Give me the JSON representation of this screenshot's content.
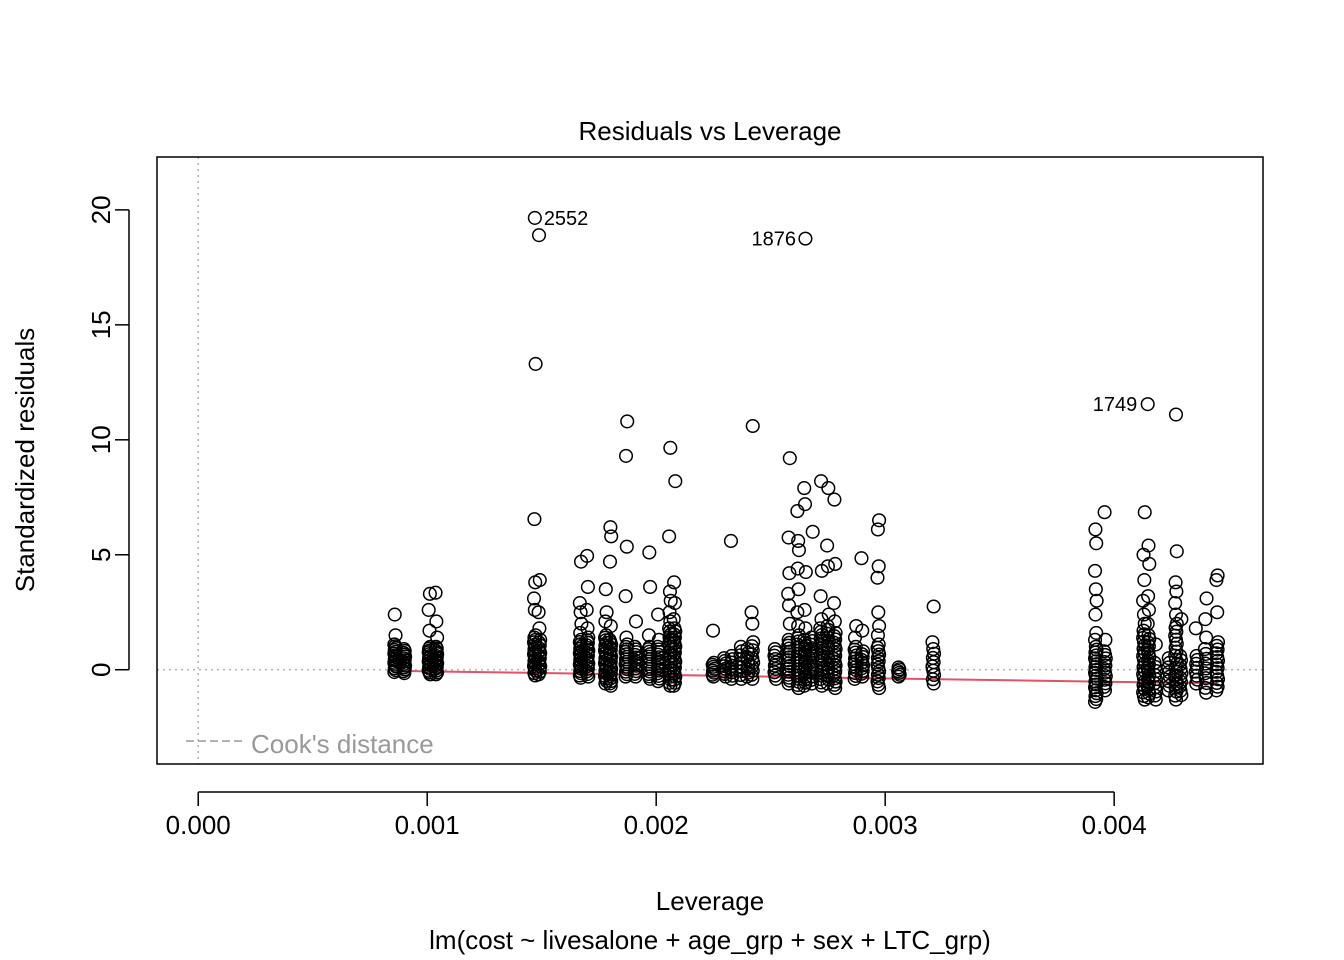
{
  "chart_data": {
    "type": "scatter",
    "title": "Residuals vs Leverage",
    "xlabel": "Leverage",
    "ylabel": "Standardized residuals",
    "subtitle": "lm(cost ~ livesalone + age_grp + sex + LTC_grp)",
    "xlim": [
      -0.00018,
      0.00465
    ],
    "ylim": [
      -4.1,
      22.3
    ],
    "x_ticks": [
      "0.000",
      "0.001",
      "0.002",
      "0.003",
      "0.004"
    ],
    "x_tick_values": [
      0,
      0.001,
      0.002,
      0.003,
      0.004
    ],
    "y_ticks": [
      "0",
      "5",
      "10",
      "15",
      "20"
    ],
    "y_tick_values": [
      0,
      5,
      10,
      15,
      20
    ],
    "reference_lines": {
      "x": 0,
      "y": 0,
      "style": "dotted",
      "color": "#b3b3b3"
    },
    "legend": {
      "label": "Cook's distance",
      "placement": "bottom-left",
      "line_style": "dashed",
      "color": "#999999"
    },
    "smoother_color": "#df536b",
    "smoother": [
      [
        0.00087,
        -0.05
      ],
      [
        0.001,
        -0.07
      ],
      [
        0.0015,
        -0.14
      ],
      [
        0.002,
        -0.22
      ],
      [
        0.0025,
        -0.3
      ],
      [
        0.003,
        -0.38
      ],
      [
        0.0035,
        -0.45
      ],
      [
        0.004,
        -0.53
      ],
      [
        0.00445,
        -0.58
      ]
    ],
    "labeled_points": [
      {
        "label": "2552",
        "x": 0.00147,
        "y": 19.65,
        "side": "right"
      },
      {
        "label": "1876",
        "x": 0.00265,
        "y": 18.75,
        "side": "left"
      },
      {
        "label": "1749",
        "x": 0.00414,
        "y": 11.55,
        "side": "left"
      }
    ],
    "clusters": [
      {
        "x": 0.00086,
        "ymin": -0.1,
        "ymax": 1.1,
        "n": 16,
        "extra": [
          1.5,
          2.4
        ]
      },
      {
        "x": 0.0009,
        "ymin": -0.15,
        "ymax": 0.9,
        "n": 14,
        "extra": []
      },
      {
        "x": 0.00101,
        "ymin": -0.2,
        "ymax": 1.0,
        "n": 16,
        "extra": [
          1.7,
          2.6,
          3.3
        ]
      },
      {
        "x": 0.00104,
        "ymin": -0.2,
        "ymax": 1.0,
        "n": 16,
        "extra": [
          1.4,
          2.1,
          3.35
        ]
      },
      {
        "x": 0.00147,
        "ymin": -0.25,
        "ymax": 1.5,
        "n": 18,
        "extra": [
          2.6,
          3.1,
          3.8,
          6.55,
          13.3,
          19.65
        ]
      },
      {
        "x": 0.00149,
        "ymin": -0.2,
        "ymax": 1.3,
        "n": 14,
        "extra": [
          1.8,
          2.5,
          3.9,
          18.9
        ]
      },
      {
        "x": 0.00167,
        "ymin": -0.35,
        "ymax": 1.3,
        "n": 18,
        "extra": [
          1.6,
          2.0,
          2.5,
          2.9,
          4.7
        ]
      },
      {
        "x": 0.0017,
        "ymin": -0.3,
        "ymax": 1.4,
        "n": 16,
        "extra": [
          1.8,
          2.6,
          3.6,
          4.95
        ]
      },
      {
        "x": 0.00178,
        "ymin": -0.6,
        "ymax": 1.5,
        "n": 20,
        "extra": [
          2.1,
          2.5,
          3.5
        ]
      },
      {
        "x": 0.0018,
        "ymin": -0.7,
        "ymax": 1.3,
        "n": 20,
        "extra": [
          1.9,
          4.7,
          5.8,
          6.2
        ]
      },
      {
        "x": 0.00187,
        "ymin": -0.3,
        "ymax": 1.1,
        "n": 14,
        "extra": [
          1.4,
          3.2,
          5.35,
          9.3,
          10.8
        ]
      },
      {
        "x": 0.00191,
        "ymin": -0.3,
        "ymax": 1.0,
        "n": 12,
        "extra": [
          2.1
        ]
      },
      {
        "x": 0.00197,
        "ymin": -0.4,
        "ymax": 1.0,
        "n": 14,
        "extra": [
          1.5,
          3.6,
          5.1
        ]
      },
      {
        "x": 0.00201,
        "ymin": -0.5,
        "ymax": 1.0,
        "n": 14,
        "extra": [
          1.3,
          2.4
        ]
      },
      {
        "x": 0.00206,
        "ymin": -0.7,
        "ymax": 1.8,
        "n": 20,
        "extra": [
          2.1,
          2.5,
          3.0,
          3.4,
          5.8,
          9.65
        ]
      },
      {
        "x": 0.00208,
        "ymin": -0.7,
        "ymax": 1.8,
        "n": 20,
        "extra": [
          2.2,
          2.9,
          3.8,
          8.2
        ]
      },
      {
        "x": 0.00225,
        "ymin": -0.3,
        "ymax": 0.3,
        "n": 8,
        "extra": [
          1.7
        ]
      },
      {
        "x": 0.0023,
        "ymin": -0.3,
        "ymax": 0.5,
        "n": 8,
        "extra": []
      },
      {
        "x": 0.00233,
        "ymin": -0.4,
        "ymax": 0.6,
        "n": 8,
        "extra": [
          5.6
        ]
      },
      {
        "x": 0.00237,
        "ymin": -0.4,
        "ymax": 0.8,
        "n": 8,
        "extra": [
          1.0
        ]
      },
      {
        "x": 0.0024,
        "ymin": -0.3,
        "ymax": 0.9,
        "n": 8,
        "extra": []
      },
      {
        "x": 0.00242,
        "ymin": -0.4,
        "ymax": 1.2,
        "n": 10,
        "extra": [
          2.0,
          2.5,
          10.6
        ]
      },
      {
        "x": 0.00252,
        "ymin": -0.4,
        "ymax": 0.9,
        "n": 10,
        "extra": []
      },
      {
        "x": 0.00258,
        "ymin": -0.6,
        "ymax": 1.3,
        "n": 16,
        "extra": [
          2.0,
          2.8,
          3.3,
          4.2,
          5.75,
          9.2
        ]
      },
      {
        "x": 0.00262,
        "ymin": -0.8,
        "ymax": 1.5,
        "n": 18,
        "extra": [
          1.9,
          2.5,
          3.5,
          4.4,
          5.2,
          5.6,
          6.9
        ]
      },
      {
        "x": 0.00265,
        "ymin": -0.7,
        "ymax": 1.3,
        "n": 16,
        "extra": [
          1.8,
          2.6,
          4.25,
          7.2,
          7.9,
          18.75
        ]
      },
      {
        "x": 0.00268,
        "ymin": -0.6,
        "ymax": 1.4,
        "n": 14,
        "extra": [
          6.0
        ]
      },
      {
        "x": 0.00272,
        "ymin": -0.7,
        "ymax": 1.8,
        "n": 18,
        "extra": [
          2.2,
          3.2,
          4.3,
          8.2
        ]
      },
      {
        "x": 0.00275,
        "ymin": -0.6,
        "ymax": 1.9,
        "n": 16,
        "extra": [
          2.4,
          4.5,
          5.4,
          7.9
        ]
      },
      {
        "x": 0.00278,
        "ymin": -0.8,
        "ymax": 1.6,
        "n": 18,
        "extra": [
          2.1,
          2.9,
          4.6,
          7.4
        ]
      },
      {
        "x": 0.00287,
        "ymin": -0.4,
        "ymax": 1.0,
        "n": 12,
        "extra": [
          1.4,
          1.9
        ]
      },
      {
        "x": 0.0029,
        "ymin": -0.3,
        "ymax": 0.8,
        "n": 10,
        "extra": [
          1.7,
          4.85
        ]
      },
      {
        "x": 0.00297,
        "ymin": -0.8,
        "ymax": 1.1,
        "n": 14,
        "extra": [
          1.5,
          1.9,
          2.5,
          4.0,
          4.5,
          6.1,
          6.5
        ]
      },
      {
        "x": 0.00306,
        "ymin": -0.3,
        "ymax": 0.1,
        "n": 6,
        "extra": []
      },
      {
        "x": 0.00321,
        "ymin": -0.6,
        "ymax": 0.7,
        "n": 8,
        "extra": [
          0.9,
          1.2,
          2.75
        ]
      },
      {
        "x": 0.00392,
        "ymin": -1.4,
        "ymax": 1.0,
        "n": 20,
        "extra": [
          1.3,
          1.6,
          2.4,
          3.0,
          3.5,
          4.3,
          5.5,
          6.1
        ]
      },
      {
        "x": 0.00396,
        "ymin": -0.9,
        "ymax": 0.8,
        "n": 12,
        "extra": [
          1.3,
          6.85
        ]
      },
      {
        "x": 0.00413,
        "ymin": -1.3,
        "ymax": 1.7,
        "n": 20,
        "extra": [
          2.0,
          2.4,
          3.0,
          3.9,
          5.0,
          6.85
        ]
      },
      {
        "x": 0.00415,
        "ymin": -1.2,
        "ymax": 1.5,
        "n": 18,
        "extra": [
          2.0,
          2.6,
          3.2,
          4.6,
          5.4,
          11.55
        ]
      },
      {
        "x": 0.00418,
        "ymin": -1.3,
        "ymax": 0.3,
        "n": 10,
        "extra": [
          1.1
        ]
      },
      {
        "x": 0.00424,
        "ymin": -0.9,
        "ymax": 0.5,
        "n": 8,
        "extra": []
      },
      {
        "x": 0.00427,
        "ymin": -1.3,
        "ymax": 2.0,
        "n": 20,
        "extra": [
          2.4,
          2.9,
          3.4,
          3.8,
          5.15,
          11.1
        ]
      },
      {
        "x": 0.00429,
        "ymin": -1.1,
        "ymax": 0.6,
        "n": 10,
        "extra": [
          2.2
        ]
      },
      {
        "x": 0.00436,
        "ymin": -0.6,
        "ymax": 0.6,
        "n": 8,
        "extra": [
          1.8
        ]
      },
      {
        "x": 0.0044,
        "ymin": -1.0,
        "ymax": 0.9,
        "n": 10,
        "extra": [
          1.4,
          2.2,
          3.1
        ]
      },
      {
        "x": 0.00445,
        "ymin": -0.9,
        "ymax": 1.2,
        "n": 14,
        "extra": [
          2.5,
          3.9,
          4.1
        ]
      }
    ]
  }
}
